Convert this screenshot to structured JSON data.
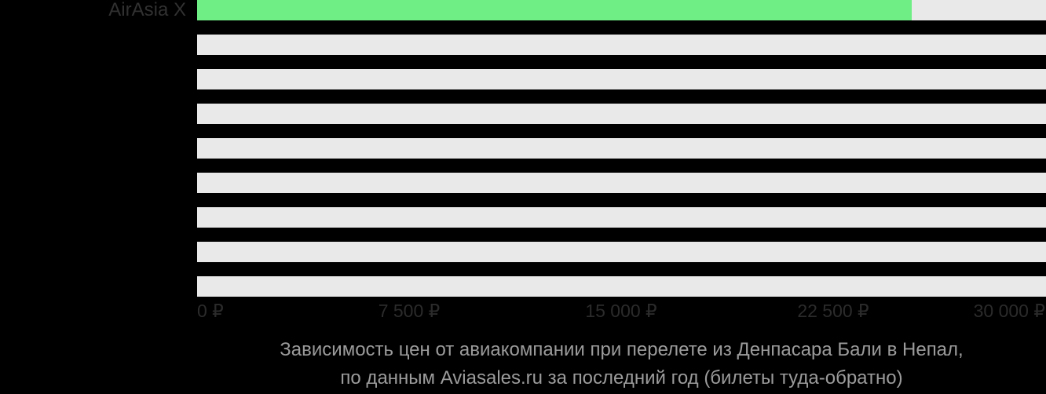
{
  "chart_data": {
    "type": "bar",
    "orientation": "horizontal",
    "title_lines": [
      "Зависимость цен от авиакомпании при перелете из Денпасара Бали в Непал,",
      "по данным Aviasales.ru за последний год (билеты туда-обратно)"
    ],
    "categories": [
      "AirAsia X",
      "",
      "",
      "",
      "",
      "",
      "",
      "",
      ""
    ],
    "values": [
      25250,
      null,
      null,
      null,
      null,
      null,
      null,
      null,
      null
    ],
    "xlabel": "",
    "ylabel": "",
    "x_axis": {
      "min": 0,
      "max": 30000,
      "ticks": [
        {
          "value": 0,
          "label": "0 ₽"
        },
        {
          "value": 7500,
          "label": "7 500 ₽"
        },
        {
          "value": 15000,
          "label": "15 000 ₽"
        },
        {
          "value": 22500,
          "label": "22 500 ₽"
        },
        {
          "value": 30000,
          "label": "30 000 ₽"
        }
      ]
    },
    "legend": false,
    "grid": false,
    "colors": {
      "background": "#000000",
      "bar_fill": "#6fee85",
      "bar_track": "#e9e9e9",
      "category_label": "#313131",
      "tick_label": "#2b2b2b",
      "title": "#9b9b9b"
    }
  }
}
